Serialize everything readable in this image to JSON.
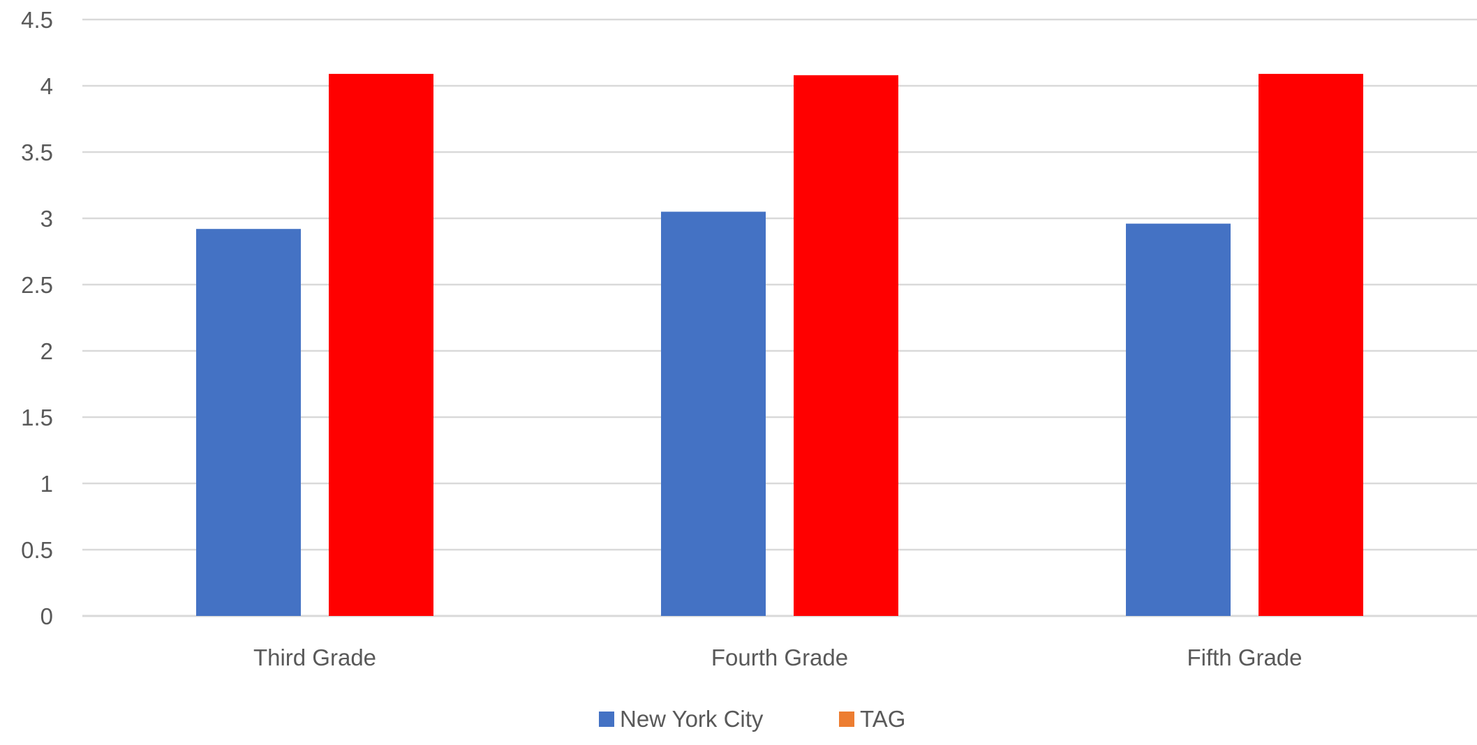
{
  "chart_data": {
    "type": "bar",
    "title": "",
    "xlabel": "",
    "ylabel": "",
    "categories": [
      "Third Grade",
      "Fourth Grade",
      "Fifth Grade"
    ],
    "series": [
      {
        "name": "New York City",
        "values": [
          2.92,
          3.05,
          2.96
        ],
        "color": "#4472c4",
        "legend_color": "#4472c4"
      },
      {
        "name": "TAG",
        "values": [
          4.09,
          4.08,
          4.09
        ],
        "color": "#ff0000",
        "legend_color": "#ed7d31"
      }
    ],
    "ylim": [
      0,
      4.5
    ],
    "yticks": [
      "0",
      "0.5",
      "1",
      "1.5",
      "2",
      "2.5",
      "3",
      "3.5",
      "4",
      "4.5"
    ],
    "grid": true,
    "legend_position": "bottom",
    "gridline_color": "#d9d9d9",
    "axis_line_color": "#d9d9d9"
  }
}
